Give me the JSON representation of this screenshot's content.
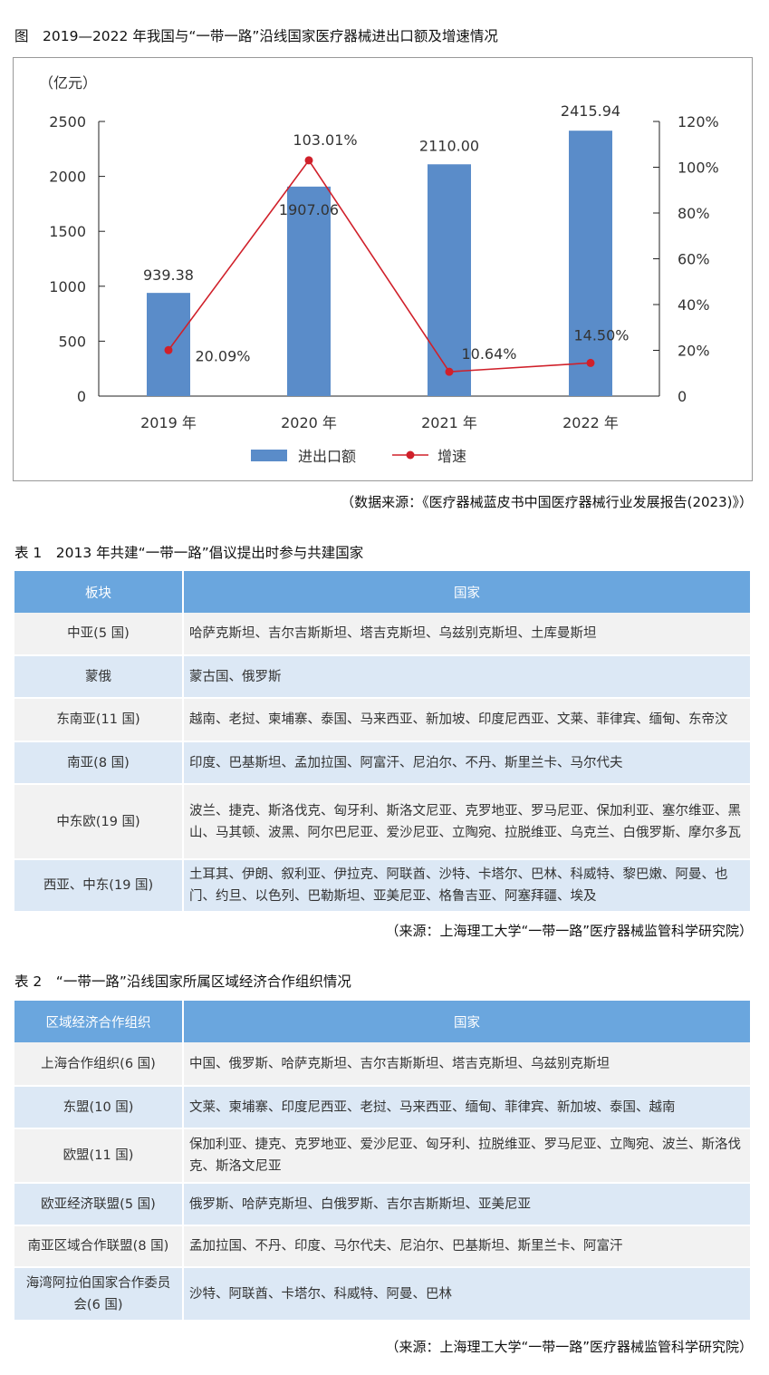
{
  "figure": {
    "caption": "图　2019—2022 年我国与“一带一路”沿线国家医疗器械进出口额及增速情况",
    "source": "（数据来源：《医疗器械蓝皮书中国医疗器械行业发展报告(2023)》）"
  },
  "chart_data": {
    "type": "bar+line",
    "unit_label": "（亿元）",
    "categories": [
      "2019 年",
      "2020 年",
      "2021 年",
      "2022 年"
    ],
    "series": [
      {
        "name": "进出口额",
        "type": "bar",
        "axis": "left",
        "color": "#5a8cc9",
        "values": [
          939.38,
          1907.06,
          2110.0,
          2415.94
        ],
        "labels": [
          "939.38",
          "1907.06",
          "2110.00",
          "2415.94"
        ]
      },
      {
        "name": "增速",
        "type": "line",
        "axis": "right",
        "color": "#d0202a",
        "values": [
          20.09,
          103.01,
          10.64,
          14.5
        ],
        "labels": [
          "20.09%",
          "103.01%",
          "10.64%",
          "14.50%"
        ]
      }
    ],
    "ylim": [
      0,
      2500
    ],
    "yticks": [
      "0",
      "500",
      "1000",
      "1500",
      "2000",
      "2500"
    ],
    "y2lim": [
      0,
      120
    ],
    "y2ticks": [
      "0",
      "20%",
      "40%",
      "60%",
      "80%",
      "100%",
      "120%"
    ],
    "legend": "bottom"
  },
  "table1": {
    "caption": "表 1　2013 年共建“一带一路”倡议提出时参与共建国家",
    "headers": [
      "板块",
      "国家"
    ],
    "rows": [
      [
        "中亚(5 国)",
        "哈萨克斯坦、吉尔吉斯斯坦、塔吉克斯坦、乌兹别克斯坦、土库曼斯坦"
      ],
      [
        "蒙俄",
        "蒙古国、俄罗斯"
      ],
      [
        "东南亚(11 国)",
        "越南、老挝、柬埔寨、泰国、马来西亚、新加坡、印度尼西亚、文莱、菲律宾、缅甸、东帝汶"
      ],
      [
        "南亚(8 国)",
        "印度、巴基斯坦、孟加拉国、阿富汗、尼泊尔、不丹、斯里兰卡、马尔代夫"
      ],
      [
        "中东欧(19 国)",
        "波兰、捷克、斯洛伐克、匈牙利、斯洛文尼亚、克罗地亚、罗马尼亚、保加利亚、塞尔维亚、黑山、马其顿、波黑、阿尔巴尼亚、爱沙尼亚、立陶宛、拉脱维亚、乌克兰、白俄罗斯、摩尔多瓦"
      ],
      [
        "西亚、中东(19 国)",
        "土耳其、伊朗、叙利亚、伊拉克、阿联酋、沙特、卡塔尔、巴林、科威特、黎巴嫩、阿曼、也门、约旦、以色列、巴勒斯坦、亚美尼亚、格鲁吉亚、阿塞拜疆、埃及"
      ]
    ],
    "source": "（来源：上海理工大学“一带一路”医疗器械监管科学研究院）"
  },
  "table2": {
    "caption": "表 2　“一带一路”沿线国家所属区域经济合作组织情况",
    "headers": [
      "区域经济合作组织",
      "国家"
    ],
    "rows": [
      [
        "上海合作组织(6 国)",
        "中国、俄罗斯、哈萨克斯坦、吉尔吉斯斯坦、塔吉克斯坦、乌兹别克斯坦"
      ],
      [
        "东盟(10 国)",
        "文莱、柬埔寨、印度尼西亚、老挝、马来西亚、缅甸、菲律宾、新加坡、泰国、越南"
      ],
      [
        "欧盟(11 国)",
        "保加利亚、捷克、克罗地亚、爱沙尼亚、匈牙利、拉脱维亚、罗马尼亚、立陶宛、波兰、斯洛伐克、斯洛文尼亚"
      ],
      [
        "欧亚经济联盟(5 国)",
        "俄罗斯、哈萨克斯坦、白俄罗斯、吉尔吉斯斯坦、亚美尼亚"
      ],
      [
        "南亚区域合作联盟(8 国)",
        "孟加拉国、不丹、印度、马尔代夫、尼泊尔、巴基斯坦、斯里兰卡、阿富汗"
      ],
      [
        "海湾阿拉伯国家合作委员会(6 国)",
        "沙特、阿联酋、卡塔尔、科威特、阿曼、巴林"
      ]
    ],
    "source": "（来源：上海理工大学“一带一路”医疗器械监管科学研究院）"
  }
}
